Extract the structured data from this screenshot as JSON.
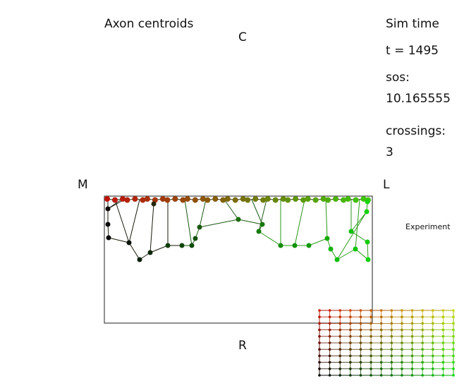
{
  "panel": {
    "title": "Axon centroids",
    "top_label": "C",
    "bottom_label": "R",
    "left_label": "M",
    "right_label": "L"
  },
  "info": {
    "sim_time_label": "Sim time",
    "time_text": "t =  1495",
    "sos_label": "sos:",
    "sos_value": "10.165555",
    "crossings_label": "crossings:",
    "crossings_value": "3"
  },
  "inset": {
    "label": "Experiment",
    "cols": 14,
    "rows": 11
  },
  "colors": {
    "red": "#c0100a",
    "green": "#22cc11",
    "line_edge": "#1a7a12"
  }
}
